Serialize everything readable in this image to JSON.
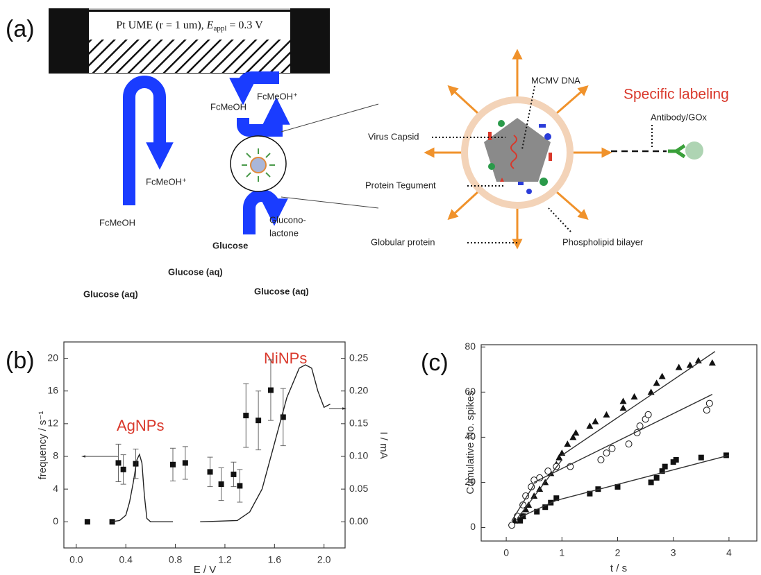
{
  "diagram": {
    "panel_labels": [
      "(a)",
      "(b)",
      "(c)"
    ],
    "electrode": {
      "prefix": "Pt UME (r = 1 um), ",
      "symbol": "E",
      "subscript": "appl",
      "suffix": " = 0.3 V"
    },
    "left_labels": {
      "ox_big": "FcMeOH⁺",
      "red_big": "FcMeOH",
      "red_small": "FcMeOH",
      "ox_small": "FcMeOH⁺",
      "glucose": "Glucose",
      "product_1": "Glucono-",
      "product_2": "lactone"
    },
    "solution_labels": [
      "Glucose (aq)",
      "Glucose (aq)",
      "Glucose (aq)"
    ],
    "virus": {
      "dna": "MCMV DNA",
      "headline": "Specific labeling",
      "antibody": "Antibody/GOx",
      "capsid": "Virus Capsid",
      "tegument": "Protein Tegument",
      "globular": "Globular protein",
      "bilayer": "Phospholipid bilayer"
    }
  },
  "chart_data": [
    {
      "type": "scatter",
      "x_label": "E / V",
      "y_label": "frequency / s⁻¹",
      "y2_label": "I / mA",
      "xlim": [
        -0.1,
        2.17
      ],
      "ylim": [
        -3.2,
        22
      ],
      "y2lim": [
        -0.04,
        0.275
      ],
      "xticks": [
        {
          "value": 0,
          "label": "0.0"
        },
        {
          "value": 0.4,
          "label": "0.4"
        },
        {
          "value": 0.8,
          "label": "0.8"
        },
        {
          "value": 1.2,
          "label": "1.2"
        },
        {
          "value": 1.6,
          "label": "1.6"
        },
        {
          "value": 2.0,
          "label": "2.0"
        }
      ],
      "yticks": [
        0,
        4,
        8,
        12,
        16,
        20
      ],
      "y2ticks": [
        {
          "value": 0,
          "label": "0.00"
        },
        {
          "value": 0.05,
          "label": "0.05"
        },
        {
          "value": 0.1,
          "label": "0.10"
        },
        {
          "value": 0.15,
          "label": "0.15"
        },
        {
          "value": 0.2,
          "label": "0.20"
        },
        {
          "value": 0.25,
          "label": "0.25"
        }
      ],
      "annotations": [
        {
          "text": "AgNPs",
          "color": "#d9382b"
        },
        {
          "text": "NiNPs",
          "color": "#d9382b"
        }
      ],
      "series": [
        {
          "style": "markers",
          "marker": "square",
          "color": "#111111",
          "x": [
            0.09,
            0.29,
            0.34,
            0.38,
            0.48,
            0.78,
            0.88,
            1.08,
            1.17,
            1.27,
            1.32,
            1.37,
            1.47,
            1.57,
            1.67
          ],
          "values": [
            0,
            0,
            7.2,
            6.4,
            7.1,
            7.0,
            7.2,
            6.1,
            4.6,
            5.8,
            4.4,
            13.0,
            12.4,
            16.1,
            12.8
          ],
          "errors": [
            0,
            0,
            2.3,
            1.8,
            1.8,
            2,
            2,
            1.8,
            2,
            1.5,
            2,
            3.9,
            3.6,
            3.7,
            3.5
          ]
        },
        {
          "style": "line",
          "axis": "y2",
          "color": "#222222",
          "x": [
            0.28,
            0.35,
            0.4,
            0.43,
            0.46,
            0.49,
            0.51,
            0.53,
            0.55,
            0.57,
            0.6,
            0.78,
            null,
            1.0,
            1.3,
            1.4,
            1.5,
            1.6,
            1.7,
            1.8,
            1.85,
            1.9,
            1.95,
            2.0,
            2.05
          ],
          "values": [
            0,
            0.002,
            0.01,
            0.03,
            0.06,
            0.095,
            0.103,
            0.09,
            0.04,
            0.005,
            0,
            0,
            null,
            0,
            0.002,
            0.015,
            0.05,
            0.12,
            0.19,
            0.235,
            0.24,
            0.235,
            0.2,
            0.175,
            0.18
          ]
        }
      ]
    },
    {
      "type": "scatter",
      "x_label": "t / s",
      "y_label": "Cumulative No. spikes",
      "xlim": [
        -0.45,
        4.5
      ],
      "ylim": [
        -6,
        81
      ],
      "xticks": [
        0,
        1,
        2,
        3,
        4
      ],
      "yticks": [
        0,
        20,
        40,
        60,
        80
      ],
      "series": [
        {
          "style": "markers",
          "marker": "triangle",
          "color": "#111111",
          "x": [
            0.15,
            0.3,
            0.35,
            0.4,
            0.5,
            0.6,
            0.7,
            0.8,
            0.9,
            0.95,
            1.0,
            1.1,
            1.2,
            1.25,
            1.5,
            1.6,
            1.8,
            2.1,
            2.1,
            2.3,
            2.6,
            2.7,
            2.8,
            3.1,
            3.3,
            3.45,
            3.7
          ],
          "values": [
            3,
            5,
            8,
            10,
            14,
            17,
            20,
            24,
            28,
            31,
            33,
            37,
            40,
            42,
            45,
            47,
            50,
            53,
            56,
            58,
            60,
            64,
            67,
            71,
            72,
            74,
            73
          ]
        },
        {
          "style": "markers",
          "marker": "circle",
          "color": "#111111",
          "x": [
            0.1,
            0.2,
            0.3,
            0.35,
            0.45,
            0.5,
            0.6,
            0.75,
            0.9,
            1.15,
            1.7,
            1.8,
            1.9,
            2.2,
            2.35,
            2.4,
            2.5,
            2.55,
            3.6,
            3.65
          ],
          "values": [
            1,
            5,
            10,
            14,
            18,
            21,
            22,
            25,
            27,
            27,
            30,
            33,
            35,
            37,
            42,
            45,
            48,
            50,
            52,
            55
          ]
        },
        {
          "style": "markers",
          "marker": "square",
          "color": "#111111",
          "x": [
            0.25,
            0.3,
            0.55,
            0.7,
            0.8,
            0.9,
            1.5,
            1.65,
            2.0,
            2.6,
            2.7,
            2.8,
            2.85,
            3.0,
            3.05,
            3.5,
            3.95
          ],
          "values": [
            3,
            5,
            7,
            9,
            11,
            13,
            15,
            17,
            18,
            20,
            22,
            25,
            27,
            29,
            30,
            31,
            32
          ]
        },
        {
          "style": "line",
          "color": "#333333",
          "x": [
            0.2,
            1.0,
            null,
            1.0,
            3.75
          ],
          "values": [
            4,
            30,
            null,
            32,
            78
          ]
        },
        {
          "style": "line",
          "color": "#333333",
          "x": [
            0.1,
            0.5,
            null,
            0.5,
            3.7
          ],
          "values": [
            3,
            19,
            null,
            20,
            59
          ]
        },
        {
          "style": "line",
          "color": "#333333",
          "x": [
            0.2,
            0.9,
            null,
            0.9,
            4.0
          ],
          "values": [
            4,
            12,
            null,
            12,
            32
          ]
        }
      ]
    }
  ]
}
